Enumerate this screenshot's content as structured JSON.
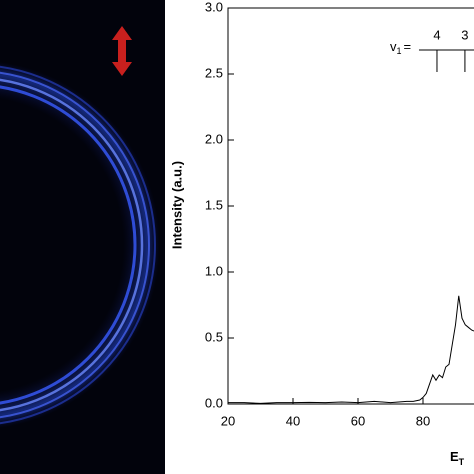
{
  "chart_data": {
    "type": "line",
    "y_label": "Intensity (a.u.)",
    "x_label": "E",
    "x_label_sub": "T",
    "x": [
      20,
      25,
      30,
      35,
      40,
      45,
      50,
      55,
      60,
      65,
      70,
      75,
      77,
      79,
      80,
      81,
      82,
      83,
      84,
      85,
      86,
      87,
      88,
      89,
      90,
      91,
      92,
      93,
      94,
      95,
      96
    ],
    "values": [
      0.01,
      0.01,
      0.005,
      0.01,
      0.01,
      0.012,
      0.01,
      0.015,
      0.01,
      0.02,
      0.01,
      0.02,
      0.02,
      0.03,
      0.05,
      0.08,
      0.15,
      0.22,
      0.18,
      0.22,
      0.2,
      0.28,
      0.3,
      0.45,
      0.6,
      0.82,
      0.65,
      0.6,
      0.58,
      0.56,
      0.55
    ],
    "color": "#000000",
    "xlim": [
      20,
      100
    ],
    "xticks": [
      20,
      40,
      60,
      80
    ],
    "ylim": [
      0,
      3
    ],
    "yticks": [
      {
        "value": 0,
        "label": "0.0"
      },
      {
        "value": 0.5,
        "label": "0.5"
      },
      {
        "value": 1,
        "label": "1.0"
      },
      {
        "value": 1.5,
        "label": "1.5"
      },
      {
        "value": 2,
        "label": "2.0"
      },
      {
        "value": 2.5,
        "label": "2.5"
      },
      {
        "value": 3,
        "label": "3.0"
      }
    ],
    "comb": {
      "symbol": "v",
      "symbol_sub": "1",
      "equals": "=",
      "labels": [
        4,
        3
      ],
      "x": [
        84.3,
        92.9
      ]
    }
  }
}
